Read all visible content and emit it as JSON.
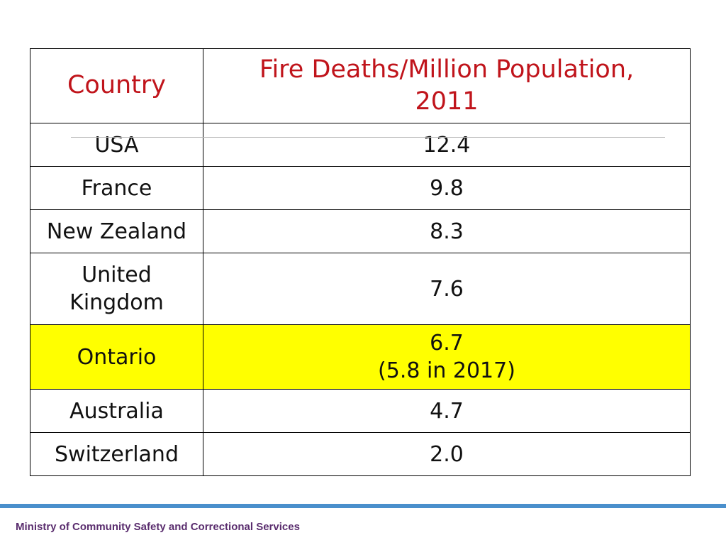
{
  "table": {
    "headers": {
      "country": "Country",
      "value_line1": "Fire Deaths/Million Population,",
      "value_line2": "2011"
    },
    "rows": [
      {
        "country": "USA",
        "value": "12.4"
      },
      {
        "country": "France",
        "value": "9.8"
      },
      {
        "country": "New Zealand",
        "value": "8.3"
      },
      {
        "country_line1": "United",
        "country_line2": "Kingdom",
        "value": "7.6"
      },
      {
        "country": "Ontario",
        "value_line1": "6.7",
        "value_line2": "(5.8 in 2017)"
      },
      {
        "country": "Australia",
        "value": "4.7"
      },
      {
        "country": "Switzerland",
        "value": "2.0"
      }
    ]
  },
  "colors": {
    "header_text": "#c0141b",
    "highlight_row": "#ffff00",
    "footer_bar": "#4a8fcc",
    "footer_text": "#5a2d6e"
  },
  "footer": {
    "organization": "Ministry of Community Safety and Correctional Services"
  }
}
